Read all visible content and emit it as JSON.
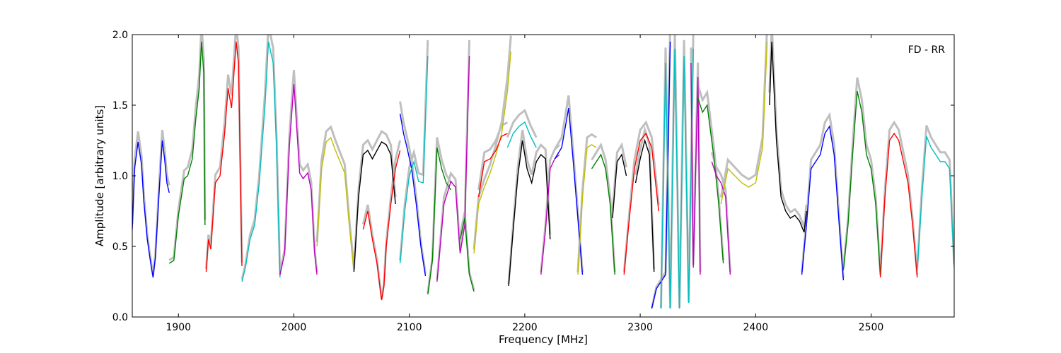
{
  "chart_data": {
    "type": "line",
    "title": "",
    "annotation": "FD - RR",
    "xlabel": "Frequency [MHz]",
    "ylabel": "Amplitude [arbitrary units]",
    "xlim": [
      1860,
      2572
    ],
    "ylim": [
      0,
      2.0
    ],
    "xticks": [
      1900,
      2000,
      2100,
      2200,
      2300,
      2400,
      2500
    ],
    "yticks": [
      0.0,
      0.5,
      1.0,
      1.5,
      2.0
    ],
    "grid": false,
    "colors": {
      "background_trace": "#bfbfbf",
      "axes": "#000000"
    },
    "series": [
      {
        "color": "#0000ff",
        "x": [
          1860,
          1862,
          1865,
          1868,
          1870,
          1873,
          1876,
          1878,
          1880,
          1883,
          1886,
          1888,
          1890,
          1892
        ],
        "y": [
          0.62,
          1.05,
          1.24,
          1.08,
          0.82,
          0.55,
          0.38,
          0.28,
          0.42,
          0.85,
          1.25,
          1.12,
          0.95,
          0.88
        ]
      },
      {
        "color": "#008000",
        "x": [
          1892,
          1896,
          1900,
          1905,
          1908,
          1912,
          1915,
          1918,
          1920,
          1922,
          1923
        ],
        "y": [
          0.38,
          0.4,
          0.72,
          0.98,
          1.0,
          1.12,
          1.4,
          1.62,
          1.95,
          1.72,
          0.65
        ]
      },
      {
        "color": "#ff0000",
        "x": [
          1924,
          1926,
          1928,
          1932,
          1936,
          1940,
          1943,
          1946,
          1950,
          1952,
          1955
        ],
        "y": [
          0.32,
          0.55,
          0.48,
          0.95,
          1.0,
          1.3,
          1.62,
          1.48,
          1.95,
          1.8,
          0.36
        ]
      },
      {
        "color": "#00bfbf",
        "x": [
          1955,
          1958,
          1962,
          1966,
          1970,
          1975,
          1978,
          1982,
          1985,
          1988
        ],
        "y": [
          0.25,
          0.35,
          0.55,
          0.65,
          0.95,
          1.5,
          1.95,
          1.8,
          1.2,
          0.28
        ]
      },
      {
        "color": "#bf00bf",
        "x": [
          1988,
          1992,
          1996,
          2000,
          2005,
          2008,
          2012,
          2015,
          2018,
          2020
        ],
        "y": [
          0.3,
          0.45,
          1.2,
          1.65,
          1.02,
          0.98,
          1.02,
          0.9,
          0.45,
          0.3
        ]
      },
      {
        "color": "#bfbf00",
        "x": [
          2020,
          2024,
          2028,
          2032,
          2036,
          2040,
          2044,
          2048,
          2052
        ],
        "y": [
          0.5,
          1.05,
          1.24,
          1.27,
          1.18,
          1.1,
          1.02,
          0.65,
          0.33
        ]
      },
      {
        "color": "#000000",
        "x": [
          2052,
          2056,
          2060,
          2064,
          2068,
          2072,
          2076,
          2080,
          2084,
          2088
        ],
        "y": [
          0.32,
          0.85,
          1.15,
          1.18,
          1.12,
          1.18,
          1.24,
          1.22,
          1.15,
          0.8
        ]
      },
      {
        "color": "#ff0000",
        "x": [
          2060,
          2064,
          2068,
          2072,
          2076,
          2078,
          2080,
          2084,
          2088,
          2092
        ],
        "y": [
          0.62,
          0.75,
          0.55,
          0.38,
          0.12,
          0.22,
          0.5,
          0.8,
          1.05,
          1.18
        ]
      },
      {
        "color": "#0000ff",
        "x": [
          2092,
          2095,
          2098,
          2102,
          2106,
          2110,
          2114
        ],
        "y": [
          1.44,
          1.3,
          1.2,
          1.05,
          0.8,
          0.5,
          0.29
        ]
      },
      {
        "color": "#00bfbf",
        "x": [
          2092,
          2096,
          2100,
          2104,
          2108,
          2112,
          2116
        ],
        "y": [
          0.38,
          0.75,
          1.0,
          1.1,
          0.96,
          0.95,
          1.85
        ]
      },
      {
        "color": "#008000",
        "x": [
          2116,
          2120,
          2124,
          2128,
          2132,
          2136
        ],
        "y": [
          0.16,
          0.4,
          1.2,
          1.05,
          0.95,
          0.9
        ]
      },
      {
        "color": "#bf00bf",
        "x": [
          2124,
          2130,
          2136,
          2140,
          2144,
          2148,
          2152
        ],
        "y": [
          0.25,
          0.8,
          0.96,
          0.92,
          0.45,
          0.65,
          1.85
        ]
      },
      {
        "color": "#008000",
        "x": [
          2144,
          2148,
          2152,
          2156
        ],
        "y": [
          0.55,
          0.7,
          0.3,
          0.18
        ]
      },
      {
        "color": "#bfbf00",
        "x": [
          2156,
          2160,
          2165,
          2170,
          2175,
          2180,
          2185,
          2188
        ],
        "y": [
          0.45,
          0.8,
          0.92,
          1.02,
          1.15,
          1.3,
          1.6,
          1.88
        ]
      },
      {
        "color": "#ff0000",
        "x": [
          2160,
          2165,
          2170,
          2175,
          2180,
          2185
        ],
        "y": [
          0.85,
          1.1,
          1.12,
          1.18,
          1.28,
          1.3
        ]
      },
      {
        "color": "#00bfbf",
        "x": [
          2185,
          2190,
          2195,
          2200,
          2205,
          2210
        ],
        "y": [
          1.2,
          1.3,
          1.35,
          1.38,
          1.28,
          1.2
        ]
      },
      {
        "color": "#000000",
        "x": [
          2186,
          2190,
          2194,
          2198,
          2202,
          2206,
          2210,
          2214,
          2218,
          2222
        ],
        "y": [
          0.22,
          0.62,
          1.0,
          1.25,
          1.05,
          0.95,
          1.1,
          1.15,
          1.12,
          0.55
        ]
      },
      {
        "color": "#bf00bf",
        "x": [
          2214,
          2218,
          2222,
          2226,
          2230
        ],
        "y": [
          0.3,
          0.62,
          1.05,
          1.12,
          1.15
        ]
      },
      {
        "color": "#0000ff",
        "x": [
          2226,
          2232,
          2238,
          2242,
          2246,
          2250
        ],
        "y": [
          1.12,
          1.2,
          1.48,
          1.1,
          0.7,
          0.3
        ]
      },
      {
        "color": "#bfbf00",
        "x": [
          2246,
          2250,
          2254,
          2258,
          2262
        ],
        "y": [
          0.3,
          0.85,
          1.2,
          1.22,
          1.2
        ]
      },
      {
        "color": "#008000",
        "x": [
          2258,
          2262,
          2266,
          2270,
          2274,
          2278
        ],
        "y": [
          1.05,
          1.1,
          1.15,
          1.05,
          0.8,
          0.3
        ]
      },
      {
        "color": "#000000",
        "x": [
          2276,
          2280,
          2284,
          2288
        ],
        "y": [
          0.7,
          1.1,
          1.15,
          1.0
        ]
      },
      {
        "color": "#ff0000",
        "x": [
          2286,
          2290,
          2295,
          2300,
          2305,
          2310,
          2316
        ],
        "y": [
          0.3,
          0.65,
          1.05,
          1.25,
          1.3,
          1.2,
          0.75
        ]
      },
      {
        "color": "#000000",
        "x": [
          2296,
          2300,
          2304,
          2308,
          2312
        ],
        "y": [
          0.95,
          1.12,
          1.25,
          1.15,
          0.32
        ]
      },
      {
        "color": "#0000ff",
        "x": [
          2310,
          2314,
          2318,
          2322,
          2326
        ],
        "y": [
          0.06,
          0.2,
          0.25,
          0.3,
          1.95
        ]
      },
      {
        "color": "#00bfbf",
        "x": [
          2318,
          2322,
          2326,
          2330,
          2334,
          2338,
          2342,
          2346
        ],
        "y": [
          0.06,
          1.8,
          0.06,
          1.9,
          0.06,
          1.85,
          0.1,
          1.9
        ]
      },
      {
        "color": "#bf00bf",
        "x": [
          2344,
          2346,
          2350,
          2352
        ],
        "y": [
          1.8,
          0.35,
          1.7,
          0.3
        ]
      },
      {
        "color": "#008000",
        "x": [
          2350,
          2354,
          2358,
          2364,
          2368,
          2372
        ],
        "y": [
          1.55,
          1.45,
          1.5,
          1.12,
          0.8,
          0.38
        ]
      },
      {
        "color": "#bf00bf",
        "x": [
          2362,
          2366,
          2370,
          2374,
          2378
        ],
        "y": [
          1.1,
          1.0,
          0.95,
          0.85,
          0.3
        ]
      },
      {
        "color": "#bfbf00",
        "x": [
          2370,
          2376,
          2382,
          2388,
          2394,
          2400,
          2406,
          2410
        ],
        "y": [
          0.8,
          1.05,
          1.0,
          0.95,
          0.92,
          0.95,
          1.2,
          1.95
        ]
      },
      {
        "color": "#000000",
        "x": [
          2412,
          2414,
          2418,
          2422,
          2426,
          2430,
          2434,
          2438,
          2442,
          2444
        ],
        "y": [
          1.5,
          1.95,
          1.25,
          0.85,
          0.75,
          0.7,
          0.72,
          0.68,
          0.6,
          0.75
        ]
      },
      {
        "color": "#0000ff",
        "x": [
          2440,
          2444,
          2448,
          2452,
          2456,
          2460,
          2464,
          2468,
          2472,
          2476
        ],
        "y": [
          0.3,
          0.65,
          1.05,
          1.1,
          1.15,
          1.3,
          1.35,
          1.15,
          0.7,
          0.26
        ]
      },
      {
        "color": "#008000",
        "x": [
          2476,
          2480,
          2484,
          2488,
          2492,
          2496,
          2500,
          2504,
          2508
        ],
        "y": [
          0.33,
          0.65,
          1.15,
          1.6,
          1.45,
          1.15,
          1.05,
          0.8,
          0.3
        ]
      },
      {
        "color": "#ff0000",
        "x": [
          2508,
          2512,
          2516,
          2520,
          2524,
          2528,
          2532,
          2536,
          2540
        ],
        "y": [
          0.28,
          0.85,
          1.25,
          1.3,
          1.25,
          1.1,
          0.95,
          0.65,
          0.28
        ]
      },
      {
        "color": "#00bfbf",
        "x": [
          2540,
          2544,
          2548,
          2552,
          2556,
          2560,
          2564,
          2568,
          2572
        ],
        "y": [
          0.33,
          0.85,
          1.28,
          1.2,
          1.15,
          1.1,
          1.1,
          1.05,
          0.35
        ]
      }
    ]
  }
}
